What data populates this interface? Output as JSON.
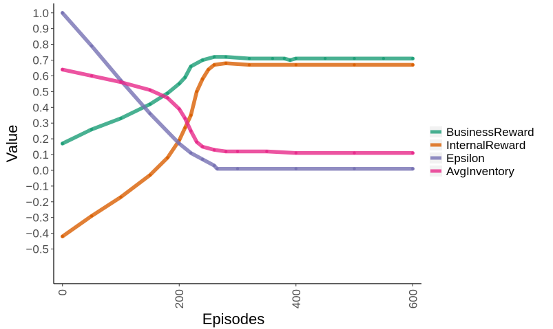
{
  "chart_data": {
    "type": "line",
    "title": "",
    "xlabel": "Episodes",
    "ylabel": "Value",
    "xlim": [
      -15,
      615
    ],
    "ylim": [
      -0.72,
      1.06
    ],
    "x_ticks": [
      0,
      200,
      400,
      600
    ],
    "x_tick_labels": [
      "0",
      "200",
      "400",
      "600"
    ],
    "y_ticks": [
      1.0,
      0.9,
      0.8,
      0.7,
      0.6,
      0.5,
      0.4,
      0.3,
      0.2,
      0.1,
      0.0,
      -0.1,
      -0.2,
      -0.3,
      -0.4,
      -0.5
    ],
    "y_tick_labels": [
      "1.0",
      "0.9",
      "0.8",
      "0.7",
      "0.6",
      "0.5",
      "0.4",
      "0.3",
      "0.2",
      "0.1",
      "0.0",
      "−0.1",
      "−0.2",
      "−0.3",
      "−0.4",
      "−0.5"
    ],
    "grid": false,
    "legend_position": "right",
    "series": [
      {
        "name": "BusinessReward",
        "color": "#1b9e77",
        "x": [
          0,
          50,
          100,
          150,
          180,
          200,
          210,
          220,
          240,
          260,
          280,
          320,
          360,
          380,
          390,
          400,
          450,
          500,
          550,
          600
        ],
        "y": [
          0.17,
          0.26,
          0.33,
          0.42,
          0.49,
          0.55,
          0.59,
          0.66,
          0.7,
          0.72,
          0.72,
          0.71,
          0.71,
          0.71,
          0.7,
          0.71,
          0.71,
          0.71,
          0.71,
          0.71
        ]
      },
      {
        "name": "InternalReward",
        "color": "#d95f02",
        "x": [
          0,
          50,
          100,
          150,
          180,
          200,
          210,
          220,
          230,
          240,
          250,
          260,
          280,
          320,
          400,
          500,
          600
        ],
        "y": [
          -0.42,
          -0.29,
          -0.17,
          -0.03,
          0.08,
          0.19,
          0.27,
          0.35,
          0.5,
          0.58,
          0.64,
          0.67,
          0.68,
          0.67,
          0.67,
          0.67,
          0.67
        ]
      },
      {
        "name": "Epsilon",
        "color": "#7570b3",
        "x": [
          0,
          50,
          100,
          150,
          200,
          220,
          240,
          260,
          265,
          300,
          400,
          500,
          600
        ],
        "y": [
          1.0,
          0.79,
          0.57,
          0.36,
          0.17,
          0.11,
          0.07,
          0.03,
          0.01,
          0.01,
          0.01,
          0.01,
          0.01
        ]
      },
      {
        "name": "AvgInventory",
        "color": "#e7298a",
        "x": [
          0,
          50,
          100,
          150,
          180,
          200,
          210,
          220,
          230,
          240,
          260,
          280,
          300,
          350,
          400,
          500,
          600
        ],
        "y": [
          0.64,
          0.6,
          0.56,
          0.51,
          0.46,
          0.39,
          0.33,
          0.25,
          0.18,
          0.15,
          0.13,
          0.12,
          0.12,
          0.12,
          0.11,
          0.11,
          0.11
        ]
      }
    ]
  }
}
